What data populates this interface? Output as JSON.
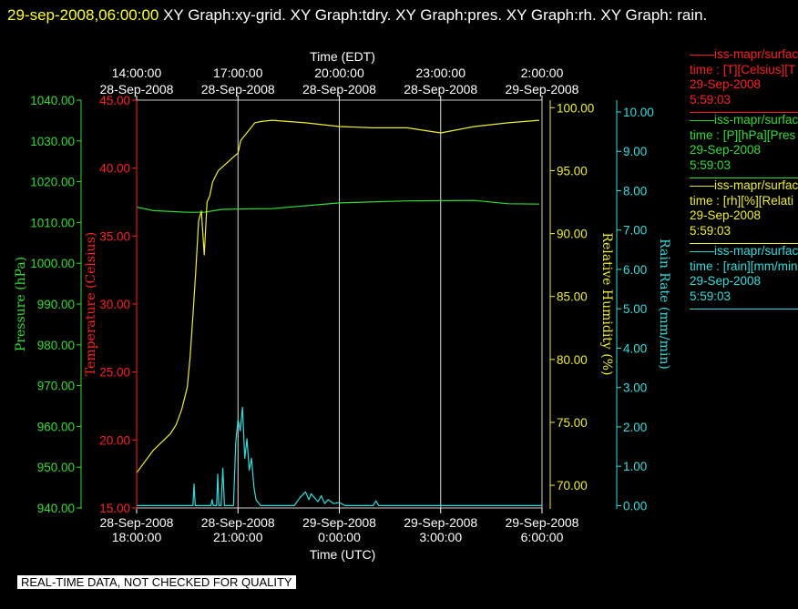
{
  "header": {
    "timestamp": "29-sep-2008,06:00:00",
    "titles": "XY Graph:xy-grid.  XY Graph:tdry.  XY Graph:pres.  XY Graph:rh.  XY Graph: rain."
  },
  "legend": [
    {
      "line1": "iss-mapr/surface",
      "line2": "time : [T][Celsius][T",
      "line3": "29-Sep-2008",
      "line4": "5:59:03",
      "color": "#ff2020"
    },
    {
      "line1": "iss-mapr/surface",
      "line2": "time : [P][hPa][Pres",
      "line3": "29-Sep-2008",
      "line4": "5:59:03",
      "color": "#33dd33"
    },
    {
      "line1": "iss-mapr/surface",
      "line2": "time : [rh][%][Relati",
      "line3": "29-Sep-2008",
      "line4": "5:59:03",
      "color": "#eeee33"
    },
    {
      "line1": "iss-mapr/surface",
      "line2": "time : [rain][mm/min",
      "line3": "29-Sep-2008",
      "line4": "5:59:03",
      "color": "#33dddd"
    }
  ],
  "footer_note": "REAL-TIME DATA, NOT CHECKED FOR QUALITY",
  "chart_data": {
    "type": "line",
    "x_top": {
      "label": "Time (EDT)",
      "ticks": [
        {
          "time": "14:00:00",
          "date": "28-Sep-2008"
        },
        {
          "time": "17:00:00",
          "date": "28-Sep-2008"
        },
        {
          "time": "20:00:00",
          "date": "28-Sep-2008"
        },
        {
          "time": "23:00:00",
          "date": "28-Sep-2008"
        },
        {
          "time": "2:00:00",
          "date": "29-Sep-2008"
        }
      ]
    },
    "x_bottom": {
      "label": "Time (UTC)",
      "range": [
        "2008-09-28T18:00",
        "2008-09-29T06:00"
      ],
      "ticks": [
        {
          "date": "28-Sep-2008",
          "time": "18:00:00"
        },
        {
          "date": "28-Sep-2008",
          "time": "21:00:00"
        },
        {
          "date": "29-Sep-2008",
          "time": "0:00:00"
        },
        {
          "date": "29-Sep-2008",
          "time": "3:00:00"
        },
        {
          "date": "29-Sep-2008",
          "time": "6:00:00"
        }
      ]
    },
    "axes": {
      "pressure": {
        "label": "Pressure (hPa)",
        "color": "#33dd33",
        "ylim": [
          940,
          1040
        ],
        "ticks": [
          "940.00",
          "950.00",
          "960.00",
          "970.00",
          "980.00",
          "990.00",
          "1000.00",
          "1010.00",
          "1020.00",
          "1030.00",
          "1040.00"
        ]
      },
      "temperature": {
        "label": "Temperature (Celsius)",
        "color": "#ff2020",
        "ylim": [
          15,
          45
        ],
        "ticks": [
          "15.00",
          "20.00",
          "25.00",
          "30.00",
          "35.00",
          "40.00",
          "45.00"
        ]
      },
      "humidity": {
        "label": "Relative Humidity (%)",
        "color": "#eeee33",
        "ylim": [
          68.2,
          100.6
        ],
        "ticks": [
          "70.00",
          "75.00",
          "80.00",
          "85.00",
          "90.00",
          "95.00",
          "100.00"
        ]
      },
      "rain": {
        "label": "Rain Rate (mm/min)",
        "color": "#33dddd",
        "ylim": [
          -0.06,
          10.3
        ],
        "ticks": [
          "0.00",
          "1.00",
          "2.00",
          "3.00",
          "4.00",
          "5.00",
          "6.00",
          "7.00",
          "8.00",
          "9.00",
          "10.00"
        ]
      }
    },
    "grid": "vertical",
    "series": [
      {
        "name": "time : [T][Celsius][T",
        "axis": "temperature",
        "color": "#ff2020",
        "x": [],
        "y": []
      },
      {
        "name": "time : [P][hPa][Pres",
        "axis": "pressure",
        "color": "#33dd33",
        "x": [
          "2008-09-28T18:00",
          "2008-09-28T18:30",
          "2008-09-28T19:30",
          "2008-09-28T20:00",
          "2008-09-28T20:30",
          "2008-09-28T21:00",
          "2008-09-28T22:00",
          "2008-09-29T00:00",
          "2008-09-29T02:00",
          "2008-09-29T04:00",
          "2008-09-29T05:00",
          "2008-09-29T05:55"
        ],
        "y": [
          1013.8,
          1012.9,
          1012.5,
          1012.5,
          1013.2,
          1013.3,
          1013.4,
          1014.8,
          1015.3,
          1015.4,
          1014.6,
          1014.5
        ]
      },
      {
        "name": "time : [rh][%][Relati",
        "axis": "humidity",
        "color": "#eeee33",
        "x": [
          "2008-09-28T18:00",
          "2008-09-28T18:30",
          "2008-09-28T19:00",
          "2008-09-28T19:10",
          "2008-09-28T19:20",
          "2008-09-28T19:30",
          "2008-09-28T19:35",
          "2008-09-28T19:40",
          "2008-09-28T19:45",
          "2008-09-28T19:50",
          "2008-09-28T19:55",
          "2008-09-28T20:00",
          "2008-09-28T20:05",
          "2008-09-28T20:10",
          "2008-09-28T20:15",
          "2008-09-28T20:25",
          "2008-09-28T20:35",
          "2008-09-28T20:50",
          "2008-09-28T21:00",
          "2008-09-28T21:05",
          "2008-09-28T21:30",
          "2008-09-28T21:40",
          "2008-09-28T22:00",
          "2008-09-28T23:00",
          "2008-09-29T00:00",
          "2008-09-29T01:00",
          "2008-09-29T02:00",
          "2008-09-29T03:00",
          "2008-09-29T04:00",
          "2008-09-29T05:00",
          "2008-09-29T05:55"
        ],
        "y": [
          71.0,
          72.8,
          74.1,
          74.8,
          76.0,
          77.8,
          80.2,
          83.5,
          87.0,
          91.0,
          91.8,
          88.3,
          92.5,
          93.0,
          94.1,
          95.0,
          95.4,
          96.0,
          96.4,
          97.4,
          98.8,
          98.9,
          99.0,
          98.8,
          98.5,
          98.4,
          98.4,
          98.0,
          98.5,
          98.8,
          99.0
        ]
      },
      {
        "name": "time : [rain][mm/min",
        "axis": "rain",
        "color": "#33dddd",
        "x": [
          "2008-09-28T18:00",
          "2008-09-28T19:40",
          "2008-09-28T19:42",
          "2008-09-28T19:44",
          "2008-09-28T19:48",
          "2008-09-28T20:12",
          "2008-09-28T20:14",
          "2008-09-28T20:16",
          "2008-09-28T20:22",
          "2008-09-28T20:24",
          "2008-09-28T20:26",
          "2008-09-28T20:30",
          "2008-09-28T20:33",
          "2008-09-28T20:36",
          "2008-09-28T20:40",
          "2008-09-28T20:52",
          "2008-09-28T20:56",
          "2008-09-28T21:00",
          "2008-09-28T21:04",
          "2008-09-28T21:08",
          "2008-09-28T21:12",
          "2008-09-28T21:16",
          "2008-09-28T21:20",
          "2008-09-28T21:24",
          "2008-09-28T21:28",
          "2008-09-28T21:32",
          "2008-09-28T21:40",
          "2008-09-28T22:40",
          "2008-09-28T22:50",
          "2008-09-28T23:00",
          "2008-09-28T23:06",
          "2008-09-28T23:10",
          "2008-09-28T23:16",
          "2008-09-28T23:22",
          "2008-09-28T23:28",
          "2008-09-28T23:34",
          "2008-09-28T23:40",
          "2008-09-28T23:50",
          "2008-09-29T00:00",
          "2008-09-29T00:10",
          "2008-09-29T01:00",
          "2008-09-29T01:05",
          "2008-09-29T01:10",
          "2008-09-29T06:00"
        ],
        "y": [
          0.0,
          0.0,
          0.55,
          0.0,
          0.0,
          0.0,
          0.15,
          0.0,
          0.0,
          0.8,
          0.0,
          0.0,
          0.95,
          0.0,
          0.0,
          0.0,
          1.6,
          2.2,
          1.9,
          2.5,
          1.2,
          1.7,
          0.9,
          1.2,
          0.5,
          0.15,
          0.0,
          0.0,
          0.2,
          0.35,
          0.15,
          0.3,
          0.2,
          0.1,
          0.25,
          0.05,
          0.15,
          0.05,
          0.08,
          0.0,
          0.0,
          0.12,
          0.0,
          0.0
        ]
      }
    ]
  }
}
